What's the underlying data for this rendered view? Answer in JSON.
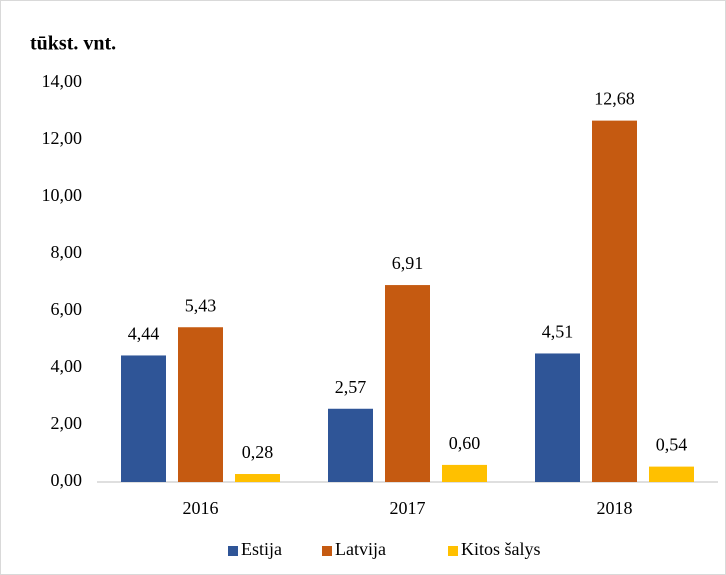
{
  "chart_data": {
    "type": "bar",
    "title": "tūkst. vnt.",
    "categories": [
      "2016",
      "2017",
      "2018"
    ],
    "series": [
      {
        "name": "Estija",
        "color": "#2f5597",
        "values": [
          4.44,
          2.57,
          4.51
        ],
        "value_labels": [
          "4,44",
          "2,57",
          "4,51"
        ]
      },
      {
        "name": "Latvija",
        "color": "#c55a11",
        "values": [
          5.43,
          6.91,
          12.68
        ],
        "value_labels": [
          "5,43",
          "6,91",
          "12,68"
        ]
      },
      {
        "name": "Kitos šalys",
        "color": "#ffc000",
        "values": [
          0.28,
          0.6,
          0.54
        ],
        "value_labels": [
          "0,28",
          "0,60",
          "0,54"
        ]
      }
    ],
    "ylim": [
      0,
      14
    ],
    "yticks": [
      {
        "value": 0,
        "label": "0,00"
      },
      {
        "value": 2,
        "label": "2,00"
      },
      {
        "value": 4,
        "label": "4,00"
      },
      {
        "value": 6,
        "label": "6,00"
      },
      {
        "value": 8,
        "label": "8,00"
      },
      {
        "value": 10,
        "label": "10,00"
      },
      {
        "value": 12,
        "label": "12,00"
      },
      {
        "value": 14,
        "label": "14,00"
      }
    ],
    "grid": false,
    "legend": "bottom"
  }
}
